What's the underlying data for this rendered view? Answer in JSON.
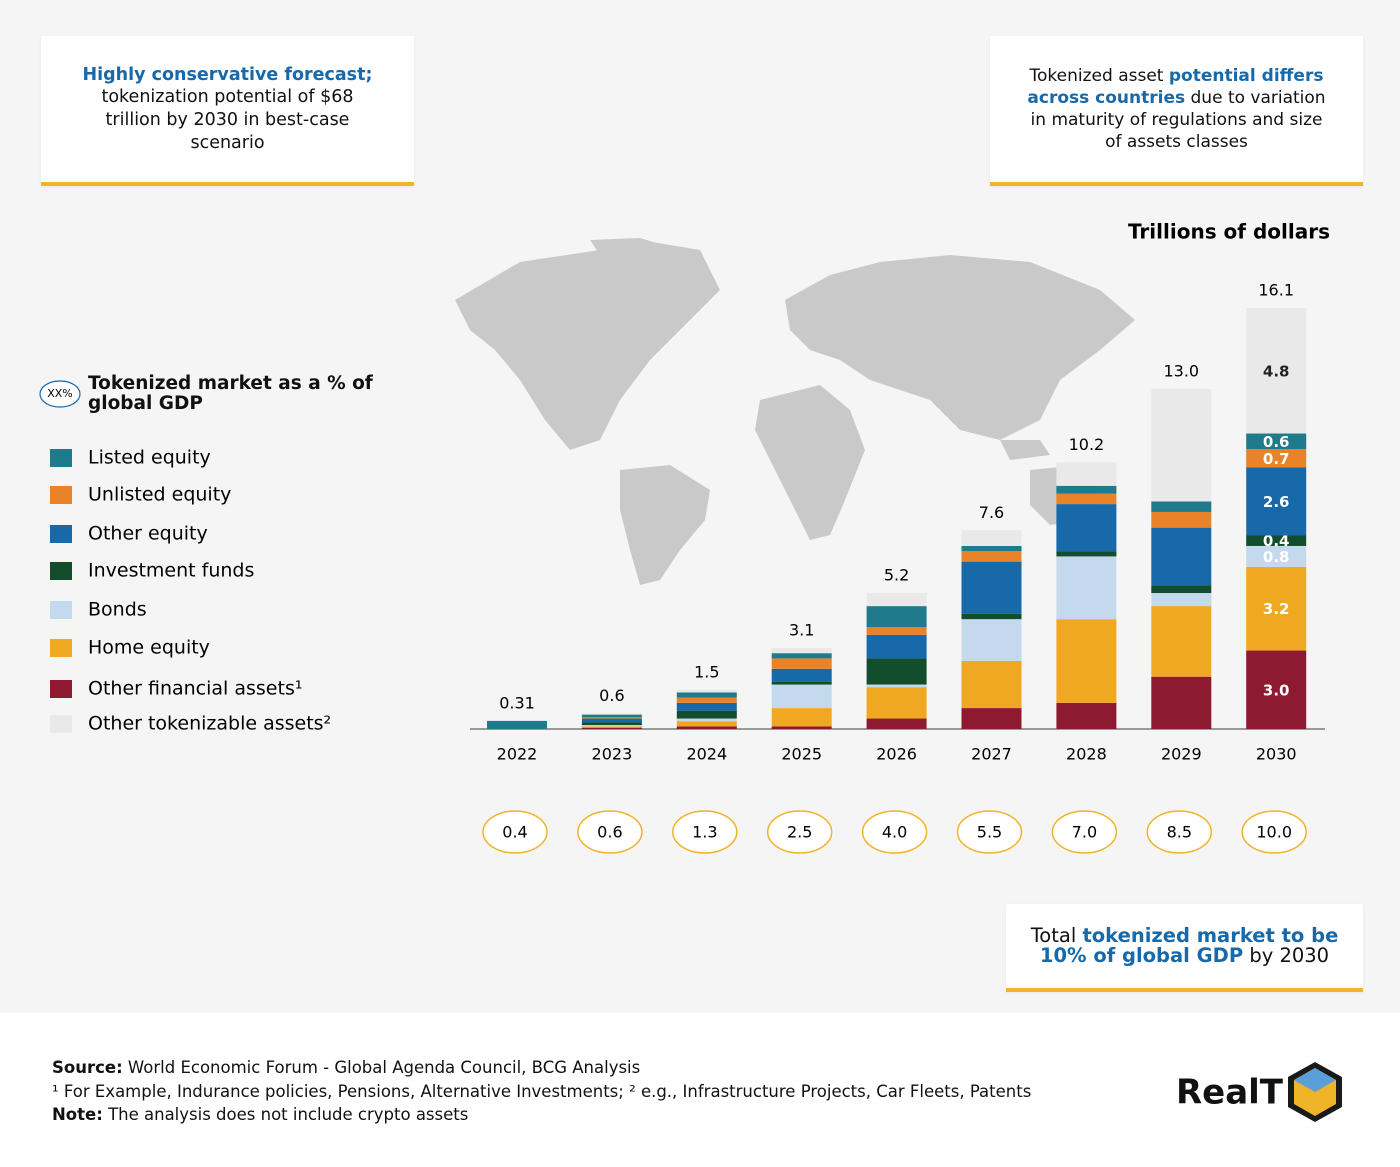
{
  "callouts": [
    {
      "parts": [
        {
          "text": "Highly conservative forecast;",
          "highlight": true
        },
        {
          "text": " tokenization potential of $68 trillion by 2030 in best-case scenario",
          "highlight": false
        }
      ]
    },
    {
      "parts": [
        {
          "text": "Tokenized asset ",
          "highlight": false
        },
        {
          "text": "potential differs across countries",
          "highlight": true
        },
        {
          "text": " due to variation in maturity of regulations and size of assets classes",
          "highlight": false
        }
      ]
    },
    {
      "parts": [
        {
          "text": "Total ",
          "highlight": false
        },
        {
          "text": "tokenized market to be 10% of global GDP",
          "highlight": true
        },
        {
          "text": " by 2030",
          "highlight": false
        }
      ]
    }
  ],
  "chart_data": {
    "type": "stacked_bar",
    "y_label": "Trillions of dollars",
    "categories": [
      "2022",
      "2023",
      "2024",
      "2025",
      "2026",
      "2027",
      "2028",
      "2029",
      "2030"
    ],
    "ylim": [
      0,
      16.1
    ],
    "series": [
      {
        "name": "Listed equity",
        "color": "#1f7a8c",
        "values": [
          0.31,
          0.1,
          0.2,
          0.2,
          0.8,
          0.2,
          0.3,
          0.4,
          0.6
        ],
        "value_labels": [
          null,
          null,
          null,
          null,
          null,
          null,
          null,
          null,
          "0.6"
        ]
      },
      {
        "name": "Unlisted equity",
        "color": "#e8832a",
        "values": [
          0,
          0.05,
          0.2,
          0.4,
          0.3,
          0.4,
          0.4,
          0.6,
          0.7
        ],
        "value_labels": [
          null,
          null,
          null,
          null,
          null,
          null,
          null,
          null,
          "0.7"
        ]
      },
      {
        "name": "Other equity",
        "color": "#1769aa",
        "values": [
          0,
          0.15,
          0.3,
          0.5,
          0.9,
          2.0,
          1.8,
          2.2,
          2.6
        ],
        "value_labels": [
          null,
          null,
          null,
          null,
          null,
          null,
          null,
          null,
          "2.6"
        ]
      },
      {
        "name": "Investment funds",
        "color": "#124d2e",
        "values": [
          0,
          0.1,
          0.3,
          0.1,
          1.0,
          0.2,
          0.2,
          0.3,
          0.4
        ],
        "value_labels": [
          null,
          null,
          null,
          null,
          null,
          null,
          null,
          null,
          "0.4"
        ]
      },
      {
        "name": "Bonds",
        "color": "#c5d9ee",
        "values": [
          0,
          0.05,
          0.1,
          0.9,
          0.1,
          1.6,
          2.4,
          0.5,
          0.8
        ],
        "value_labels": [
          null,
          null,
          null,
          null,
          null,
          null,
          null,
          null,
          "0.8"
        ]
      },
      {
        "name": "Home equity",
        "color": "#f0a823",
        "values": [
          0,
          0.05,
          0.2,
          0.7,
          1.2,
          1.8,
          3.2,
          2.7,
          3.2
        ],
        "value_labels": [
          null,
          null,
          null,
          null,
          null,
          null,
          null,
          null,
          "3.2"
        ]
      },
      {
        "name": "Other financial assets¹",
        "color": "#8e1a32",
        "values": [
          0,
          0.05,
          0.1,
          0.1,
          0.4,
          0.8,
          1.0,
          2.0,
          3.0
        ],
        "value_labels": [
          null,
          null,
          null,
          null,
          null,
          null,
          null,
          null,
          "3.0"
        ]
      },
      {
        "name": "Other tokenizable assets²",
        "color": "#e9e9e9",
        "values": [
          0,
          0.05,
          0.1,
          0.2,
          0.5,
          0.6,
          0.9,
          4.3,
          4.8
        ],
        "value_labels": [
          null,
          null,
          null,
          null,
          null,
          null,
          null,
          null,
          "4.8"
        ]
      }
    ],
    "totals": {
      "values": [
        0.31,
        0.6,
        1.5,
        3.1,
        5.2,
        7.6,
        10.2,
        13.0,
        16.1
      ],
      "value_labels": [
        "0.31",
        "0.6",
        "1.5",
        "3.1",
        "5.2",
        "7.6",
        "10.2",
        "13.0",
        "16.1"
      ]
    },
    "gdp_share": {
      "name": "Tokenized market as a % of global GDP",
      "icon": "XX%",
      "color": "#f0b429",
      "values": [
        0.4,
        0.6,
        1.3,
        2.5,
        4.0,
        5.5,
        7.0,
        8.5,
        10.0
      ],
      "value_labels": [
        "0.4",
        "0.6",
        "1.3",
        "2.5",
        "4.0",
        "5.5",
        "7.0",
        "8.5",
        "10.0"
      ]
    }
  },
  "footer": {
    "lines": [
      {
        "label": "Source:",
        "text": " World Economic Forum - Global Agenda Council, BCG Analysis"
      },
      {
        "label": null,
        "text": "¹ For Example, Indurance policies, Pensions, Alternative Investments; ² e.g., Infrastructure Projects, Car Fleets, Patents"
      },
      {
        "label": "Note:",
        "text": " The analysis does not include crypto assets"
      }
    ],
    "logo": "RealT"
  }
}
